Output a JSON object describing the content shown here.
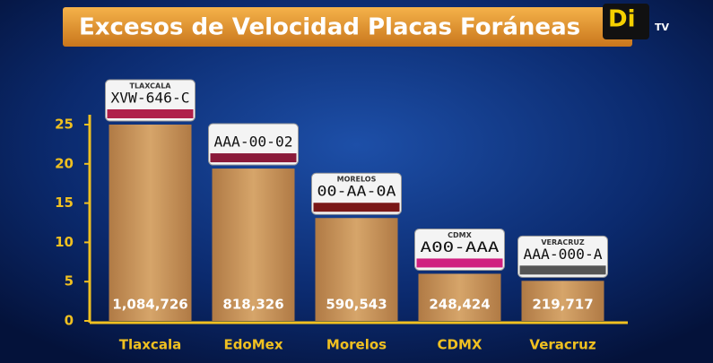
{
  "chart_data": {
    "type": "bar",
    "title": "Excesos de Velocidad Placas Foráneas",
    "categories": [
      "Tlaxcala",
      "EdoMex",
      "Morelos",
      "CDMX",
      "Veracruz"
    ],
    "values": [
      25,
      19.4,
      13.1,
      6.0,
      5.1
    ],
    "annotations": [
      "1,084,726",
      "818,326",
      "590,543",
      "248,424",
      "219,717"
    ],
    "plates": [
      {
        "number": "XVW-646-C",
        "state": "TLAXCALA"
      },
      {
        "number": "AAA-00-02",
        "state": null
      },
      {
        "number": "00-AA-0A",
        "state": "MORELOS"
      },
      {
        "number": "A00-AAA",
        "state": "CDMX"
      },
      {
        "number": "AAA-000-A",
        "state": "VERACRUZ"
      }
    ],
    "color": "#c8955c",
    "ylim": [
      0,
      25
    ],
    "yticks": [
      0,
      5,
      10,
      15,
      20,
      25
    ],
    "grid": false
  },
  "logo": {
    "text": "Di",
    "sub": "TV"
  }
}
